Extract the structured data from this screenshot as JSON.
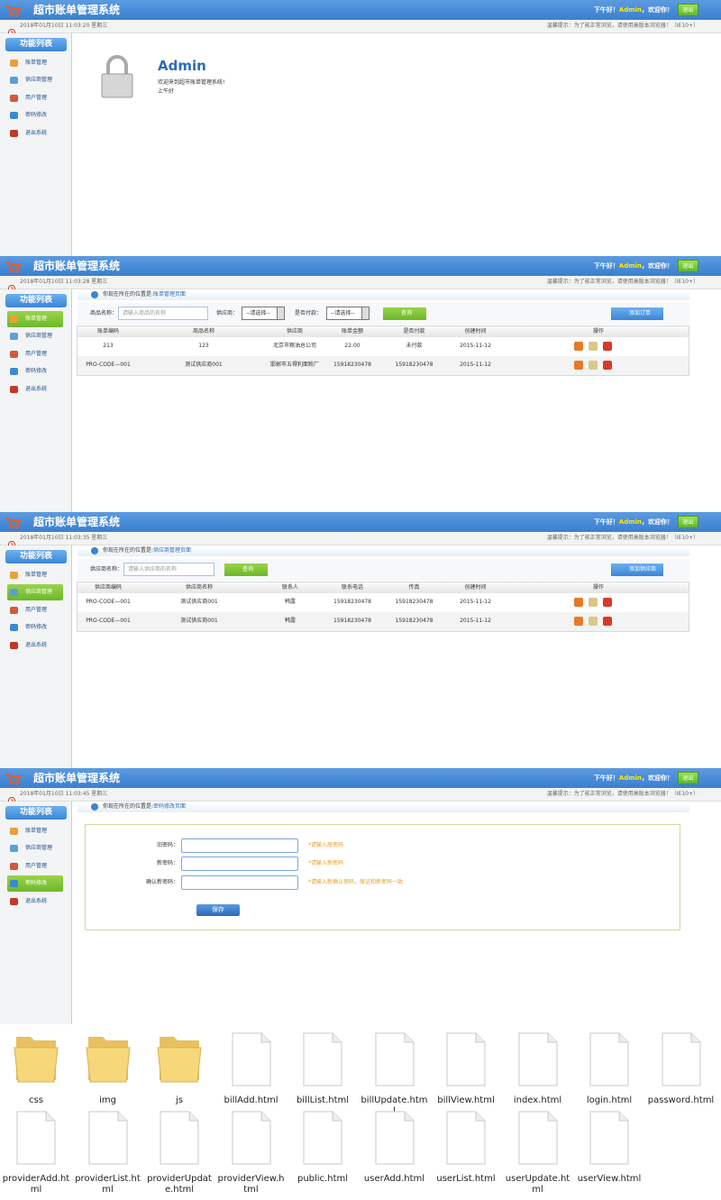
{
  "header": {
    "title": "超市账单管理系统",
    "greeting": "下午好！",
    "user": "Admin",
    "welcome": "，欢迎你！",
    "logout": "退出"
  },
  "notice": "温馨提示：为了能正常浏览，请使用高版本浏览器！（IE10+）",
  "menu": {
    "title": "功能列表",
    "items": [
      "账单管理",
      "供应商管理",
      "用户管理",
      "密码修改",
      "退出系统"
    ]
  },
  "location_prefix": "你现在所在的位置是:",
  "screens": [
    {
      "time": "2018年01月10日 11:03:20 星期三",
      "welcome": {
        "user": "Admin",
        "line1": "欢迎来到超市账单管理系统!",
        "line2": "上午好"
      }
    },
    {
      "time": "2018年01月10日 11:03:28 星期三",
      "active": 0,
      "location": "账单管理页面",
      "search": [
        {
          "label": "商品名称：",
          "placeholder": "请输入商品的名称"
        },
        {
          "label": "供应商：",
          "select": "--请选择--"
        },
        {
          "label": "是否付款：",
          "select": "--请选择--"
        }
      ],
      "query": "查询",
      "add": "添加订单",
      "table": {
        "headers": [
          "账单编码",
          "商品名称",
          "供应商",
          "账单金额",
          "是否付款",
          "创建时间",
          "操作"
        ],
        "rows": [
          [
            "213",
            "123",
            "北京市粮油总公司",
            "22.00",
            "未付款",
            "2015-11-12"
          ],
          [
            "PRO-CODE—001",
            "测试供应商001",
            "邯郸市五得利面粉厂",
            "15918230478",
            "15918230478",
            "2015-11-12"
          ]
        ]
      }
    },
    {
      "time": "2018年01月10日 11:03:35 星期三",
      "active": 1,
      "location": "供应商管理页面",
      "search": [
        {
          "label": "供应商名称：",
          "placeholder": "请输入供应商的名称"
        }
      ],
      "query": "查询",
      "add": "添加供应商",
      "table": {
        "headers": [
          "供应商编码",
          "供应商名称",
          "联系人",
          "联系电话",
          "传真",
          "创建时间",
          "操作"
        ],
        "rows": [
          [
            "PRO-CODE—001",
            "测试供应商001",
            "韩露",
            "15918230478",
            "15918230478",
            "2015-11-12"
          ],
          [
            "PRO-CODE—001",
            "测试供应商001",
            "韩露",
            "15918230478",
            "15918230478",
            "2015-11-12"
          ]
        ]
      }
    },
    {
      "time": "2018年01月10日 11:03:45 星期三",
      "active": 3,
      "location": "密码修改页面",
      "form": {
        "fields": [
          {
            "label": "旧密码：",
            "hint": "*请输入原密码"
          },
          {
            "label": "新密码：",
            "hint": "*请输入新密码"
          },
          {
            "label": "确认新密码：",
            "hint": "*请输入新确认密码，保证和新密码一致"
          }
        ],
        "save": "保存"
      }
    }
  ],
  "folders": [
    "css",
    "img",
    "js"
  ],
  "files": [
    "billAdd.html",
    "billList.html",
    "billUpdate.html",
    "billView.html",
    "index.html",
    "login.html",
    "password.html",
    "providerAdd.html",
    "providerList.html",
    "providerUpdate.html",
    "providerView.html",
    "public.html",
    "userAdd.html",
    "userList.html",
    "userUpdate.html",
    "userView.html"
  ]
}
